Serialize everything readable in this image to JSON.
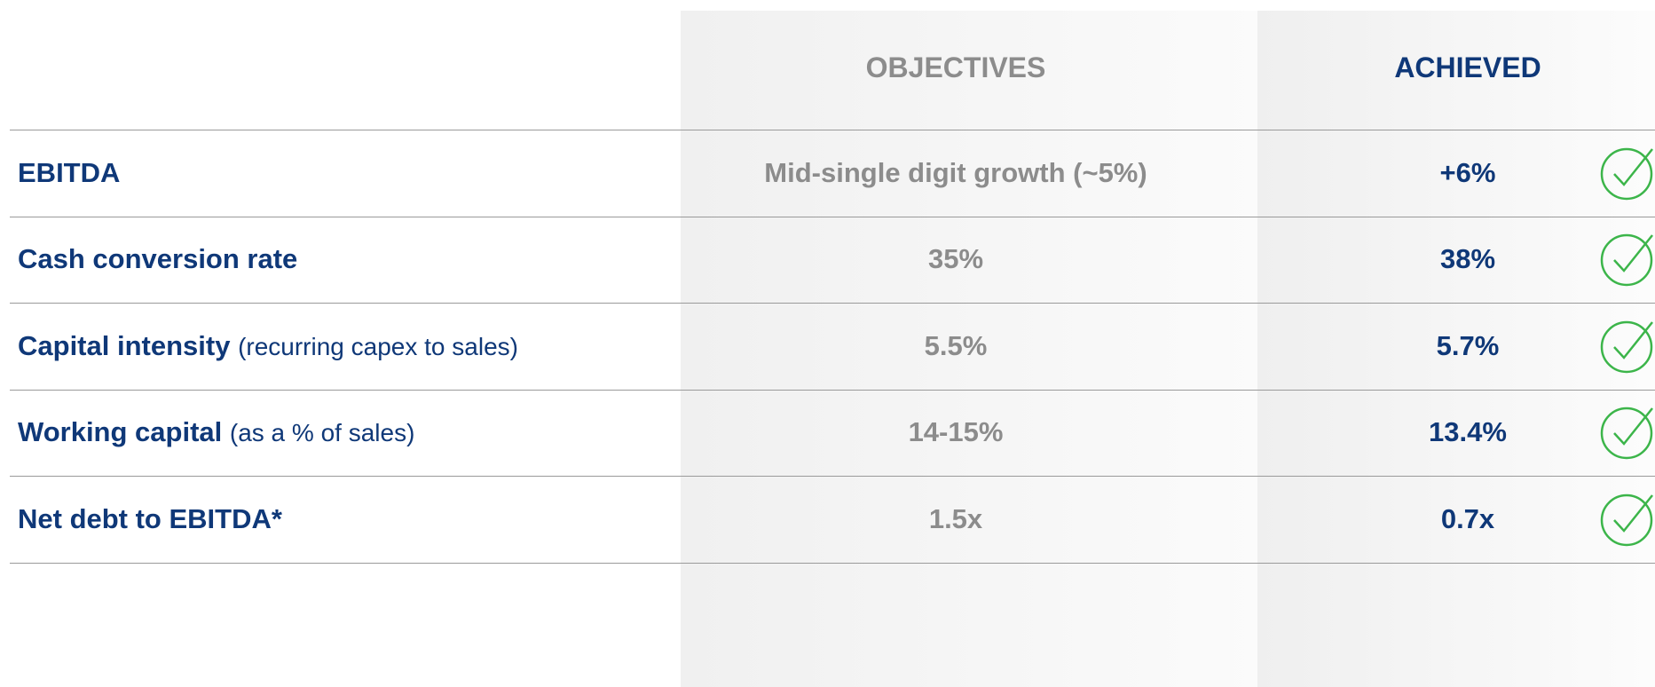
{
  "header": {
    "objectives": "OBJECTIVES",
    "achieved": "ACHIEVED"
  },
  "rows": [
    {
      "label": "EBITDA",
      "objective": "Mid-single digit growth (~5%)",
      "achieved": "+6%"
    },
    {
      "label": "Cash conversion rate",
      "objective": "35%",
      "achieved": "38%"
    },
    {
      "label": "Capital intensity",
      "note": "(recurring capex to sales)",
      "objective": "5.5%",
      "achieved": "5.7%"
    },
    {
      "label": "Working capital",
      "note": "(as a % of sales)",
      "objective": "14-15%",
      "achieved": "13.4%"
    },
    {
      "label": "Net debt to EBITDA*",
      "objective": "1.5x",
      "achieved": "0.7x"
    }
  ]
}
